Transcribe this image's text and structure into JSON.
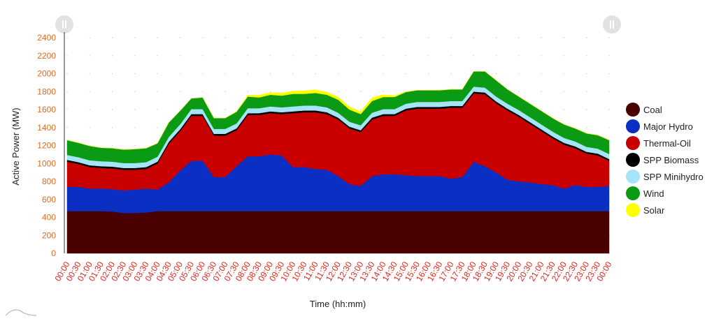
{
  "chart_data": {
    "type": "area",
    "stacked": true,
    "xlabel": "Time (hh:mm)",
    "ylabel": "Active Power (MW)",
    "ylim": [
      0,
      2400
    ],
    "yticks": [
      0,
      200,
      400,
      600,
      800,
      1000,
      1200,
      1400,
      1600,
      1800,
      2000,
      2200,
      2400
    ],
    "legend_position": "right",
    "x": [
      "00:00",
      "00:30",
      "01:00",
      "01:30",
      "02:00",
      "02:30",
      "03:00",
      "03:30",
      "04:00",
      "04:30",
      "05:00",
      "05:30",
      "06:00",
      "06:30",
      "07:00",
      "07:30",
      "08:00",
      "08:30",
      "09:00",
      "09:30",
      "10:00",
      "10:30",
      "11:00",
      "11:30",
      "12:00",
      "12:30",
      "13:00",
      "13:30",
      "14:00",
      "14:30",
      "15:00",
      "15:30",
      "16:00",
      "16:30",
      "17:00",
      "17:30",
      "18:00",
      "18:30",
      "19:00",
      "19:30",
      "20:00",
      "20:30",
      "21:00",
      "21:30",
      "22:00",
      "22:30",
      "23:00",
      "23:30",
      "00:00"
    ],
    "series": [
      {
        "name": "Coal",
        "color": "#4a0000",
        "values": [
          470,
          470,
          470,
          470,
          465,
          450,
          450,
          455,
          470,
          470,
          470,
          470,
          470,
          470,
          470,
          470,
          470,
          470,
          470,
          470,
          470,
          470,
          470,
          470,
          470,
          470,
          470,
          470,
          470,
          470,
          470,
          470,
          470,
          470,
          470,
          470,
          470,
          470,
          470,
          470,
          470,
          470,
          470,
          470,
          470,
          470,
          470,
          470,
          470
        ]
      },
      {
        "name": "Major Hydro",
        "color": "#0a2fc2",
        "values": [
          270,
          270,
          250,
          250,
          250,
          250,
          260,
          265,
          240,
          320,
          450,
          560,
          560,
          380,
          380,
          500,
          610,
          610,
          630,
          620,
          490,
          490,
          470,
          460,
          390,
          300,
          280,
          390,
          410,
          410,
          400,
          390,
          390,
          390,
          360,
          380,
          550,
          500,
          430,
          350,
          330,
          320,
          300,
          290,
          250,
          290,
          270,
          270,
          280
        ]
      },
      {
        "name": "Thermal-Oil",
        "color": "#c80000",
        "values": [
          280,
          255,
          240,
          230,
          230,
          230,
          220,
          220,
          290,
          430,
          440,
          500,
          500,
          460,
          460,
          400,
          460,
          460,
          460,
          460,
          600,
          610,
          630,
          620,
          630,
          620,
          600,
          630,
          650,
          650,
          720,
          750,
          750,
          750,
          790,
          770,
          760,
          800,
          770,
          770,
          720,
          650,
          590,
          520,
          490,
          410,
          370,
          350,
          280
        ]
      },
      {
        "name": "SPP Biomass",
        "color": "#000000",
        "values": [
          20,
          20,
          20,
          20,
          20,
          20,
          20,
          20,
          20,
          20,
          20,
          20,
          20,
          20,
          20,
          20,
          20,
          20,
          20,
          20,
          20,
          20,
          20,
          20,
          20,
          20,
          20,
          20,
          20,
          20,
          20,
          20,
          20,
          20,
          20,
          20,
          20,
          20,
          20,
          20,
          20,
          20,
          20,
          20,
          20,
          20,
          20,
          20,
          20
        ]
      },
      {
        "name": "SPP Minihydro",
        "color": "#a8e4f7",
        "values": [
          55,
          55,
          55,
          55,
          55,
          55,
          55,
          55,
          55,
          55,
          55,
          55,
          55,
          55,
          55,
          55,
          55,
          55,
          55,
          55,
          55,
          55,
          55,
          55,
          55,
          55,
          55,
          55,
          55,
          55,
          55,
          55,
          55,
          55,
          55,
          55,
          55,
          55,
          55,
          55,
          55,
          55,
          55,
          55,
          55,
          55,
          55,
          55,
          55
        ]
      },
      {
        "name": "Wind",
        "color": "#0a9a14",
        "values": [
          165,
          160,
          160,
          150,
          150,
          150,
          155,
          155,
          150,
          160,
          150,
          120,
          130,
          120,
          120,
          130,
          130,
          120,
          130,
          130,
          140,
          130,
          140,
          140,
          145,
          135,
          125,
          130,
          135,
          135,
          130,
          130,
          130,
          130,
          130,
          130,
          170,
          180,
          180,
          160,
          150,
          150,
          150,
          150,
          150,
          145,
          150,
          150,
          155
        ]
      },
      {
        "name": "Solar",
        "color": "#ffff00",
        "values": [
          0,
          0,
          0,
          0,
          0,
          0,
          0,
          0,
          0,
          0,
          0,
          0,
          0,
          0,
          0,
          5,
          15,
          25,
          25,
          30,
          30,
          35,
          35,
          30,
          30,
          30,
          30,
          35,
          25,
          15,
          5,
          0,
          0,
          0,
          0,
          0,
          0,
          0,
          0,
          0,
          0,
          0,
          0,
          0,
          0,
          0,
          0,
          0,
          0
        ]
      }
    ]
  }
}
